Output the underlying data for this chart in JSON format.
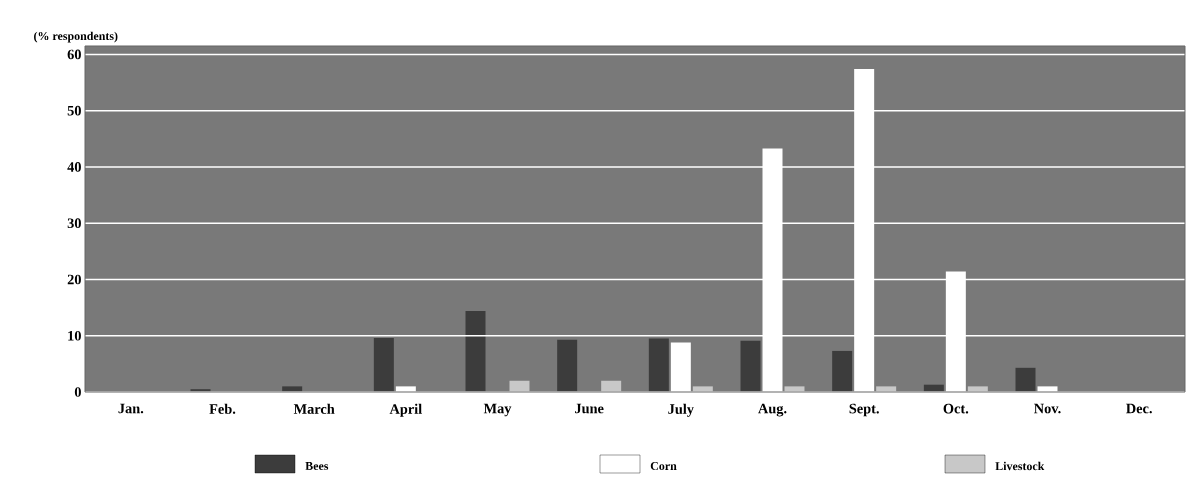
{
  "chart_data": {
    "type": "bar",
    "ylabel": "(% respondents)",
    "categories": [
      "Jan.",
      "Feb.",
      "March",
      "April",
      "May",
      "June",
      "July",
      "Aug.",
      "Sept.",
      "Oct.",
      "Nov.",
      "Dec."
    ],
    "series": [
      {
        "name": "Bees",
        "color": "#3c3c3c",
        "values": [
          0,
          0.5,
          1,
          9.6,
          14.4,
          9.3,
          9.5,
          9.1,
          7.3,
          1.3,
          4.3,
          0
        ]
      },
      {
        "name": "Corn",
        "color": "#ffffff",
        "values": [
          0,
          0,
          0,
          1,
          0,
          0,
          8.8,
          43.3,
          57.4,
          21.4,
          1,
          0
        ]
      },
      {
        "name": "Livestock",
        "color": "#c8c8c8",
        "values": [
          0,
          0,
          0,
          0,
          2,
          2,
          1,
          1,
          1,
          1,
          0,
          0
        ]
      }
    ],
    "ylim": [
      0,
      61.5
    ],
    "yticks": [
      0,
      10,
      20,
      30,
      40,
      50,
      60
    ],
    "grid": "y",
    "legend": "bottom"
  }
}
